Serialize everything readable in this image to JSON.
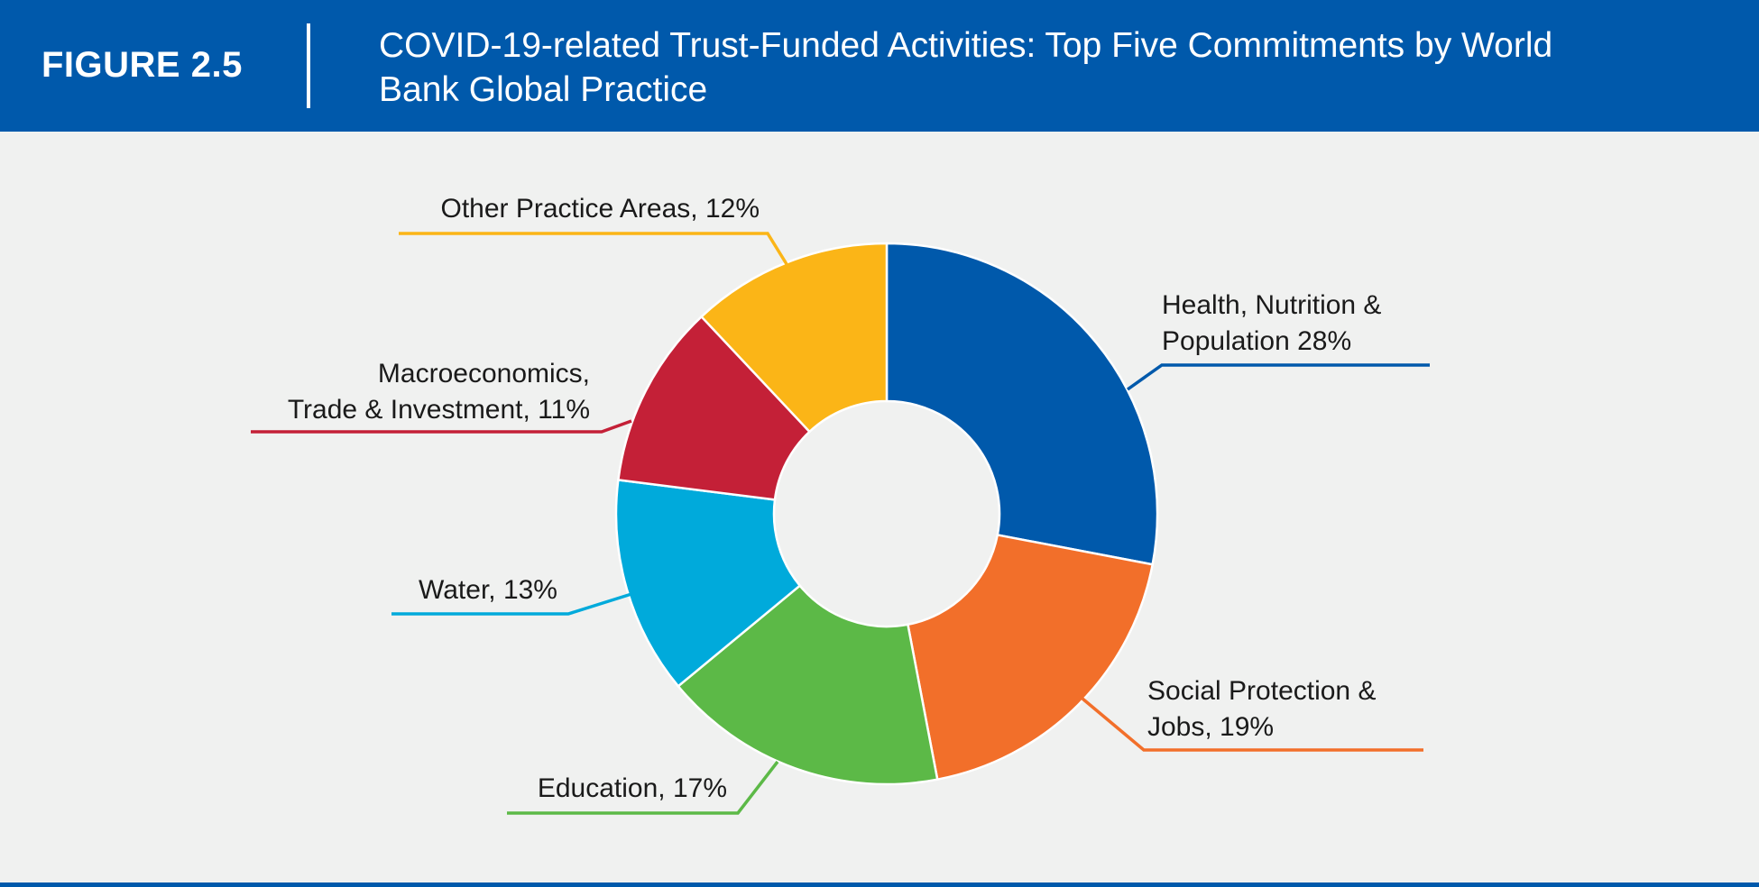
{
  "header": {
    "figure_label": "FIGURE 2.5",
    "title": "COVID-19-related Trust-Funded Activities: Top Five Commitments by World Bank Global Practice"
  },
  "colors": {
    "header_bg": "#0059ab",
    "background": "#f0f1f0"
  },
  "chart_data": {
    "type": "pie",
    "style": "donut",
    "title": "COVID-19-related Trust-Funded Activities: Top Five Commitments by World Bank Global Practice",
    "slices": [
      {
        "name": "Health, Nutrition & Population",
        "value": 28,
        "color": "#0059ab",
        "label_lines": [
          "Health, Nutrition &",
          "Population 28%"
        ]
      },
      {
        "name": "Social Protection & Jobs",
        "value": 19,
        "color": "#f26f2a",
        "label_lines": [
          "Social Protection &",
          "Jobs, 19%"
        ]
      },
      {
        "name": "Education",
        "value": 17,
        "color": "#5cb947",
        "label_lines": [
          "Education, 17%"
        ]
      },
      {
        "name": "Water",
        "value": 13,
        "color": "#00aadb",
        "label_lines": [
          "Water, 13%"
        ]
      },
      {
        "name": "Macroeconomics, Trade & Investment",
        "value": 11,
        "color": "#c42037",
        "label_lines": [
          "Macroeconomics,",
          "Trade & Investment, 11%"
        ]
      },
      {
        "name": "Other Practice Areas",
        "value": 12,
        "color": "#fbb517",
        "label_lines": [
          "Other Practice Areas, 12%"
        ]
      }
    ]
  }
}
